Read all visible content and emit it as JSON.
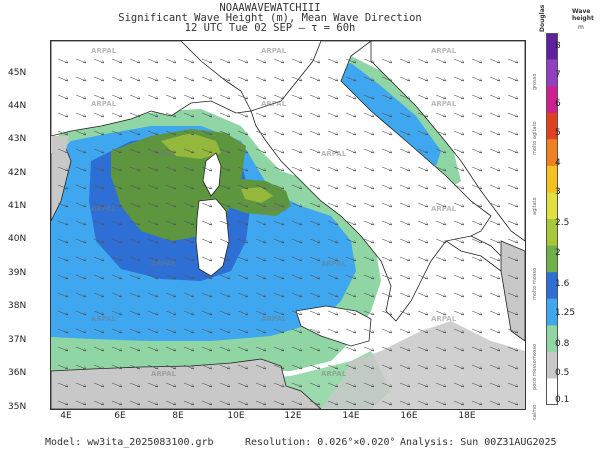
{
  "title_line1": "NOAAWAVEWATCHIII",
  "title_line2": "Significant Wave Height (m), Mean Wave Direction",
  "title_line3": "12 UTC Tue 02 SEP  –  τ = 60h",
  "lat_labels": [
    "45N",
    "44N",
    "43N",
    "42N",
    "41N",
    "40N",
    "39N",
    "38N",
    "37N",
    "36N",
    "35N"
  ],
  "lon_labels": [
    "4E",
    "6E",
    "8E",
    "10E",
    "12E",
    "14E",
    "16E",
    "18E"
  ],
  "watermark": "ARPAL",
  "footer": {
    "model": "Model: ww3ita_2025083100.grb",
    "resolution": "Resolution: 0.026°×0.020°",
    "analysis": "Analysis: Sun 00Z31AUG2025"
  },
  "legend": {
    "title_left": "Douglas",
    "title_right_1": "Wave",
    "title_right_2": "height",
    "title_right_3": "m",
    "values": [
      "8",
      "7",
      "6",
      "5",
      "4",
      "3",
      "2.5",
      "2",
      "1.6",
      "1.25",
      "0.8",
      "0.5",
      "0.1"
    ],
    "states": [
      "grosso",
      "molto agitato",
      "agitato",
      "molto mosso",
      "mosso",
      "poco mosso",
      "calmo"
    ],
    "colors": [
      "#ffffff",
      "#c8c8c8",
      "#8fd6a4",
      "#3fa6f0",
      "#2e6fd6",
      "#6fb04a",
      "#a8c83a",
      "#e0e040",
      "#f5c020",
      "#f08020",
      "#e04020",
      "#d02090",
      "#9040c0",
      "#6020a0"
    ]
  },
  "colors": {
    "land": "#c8c8c8",
    "sea_calm": "#ffffff",
    "sea_0_5": "#8fd6a4",
    "sea_0_8": "#3fa6f0",
    "sea_1_25": "#2e6fd6",
    "sea_1_6": "#5e9640",
    "sea_2": "#93b83c",
    "coast": "#222222"
  }
}
